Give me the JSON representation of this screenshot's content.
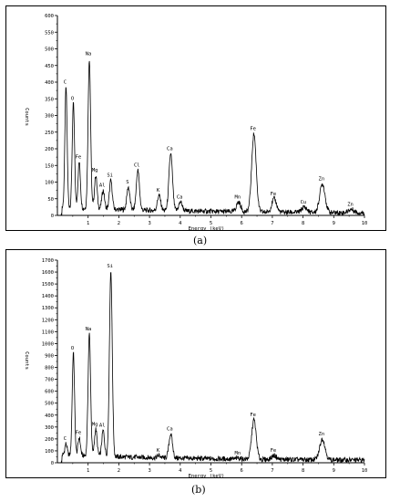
{
  "panels": [
    {
      "caption": "(a)"
    },
    {
      "caption": "(b)"
    }
  ],
  "colors": {
    "trace": "#000000",
    "background": "#ffffff"
  },
  "chart_data": [
    {
      "type": "line",
      "title": "",
      "xlabel": "Energy (keV)",
      "ylabel": "Counts",
      "xlim": [
        0,
        10
      ],
      "ylim": [
        0,
        600
      ],
      "x_ticks": [
        "1",
        "2",
        "3",
        "4",
        "5",
        "6",
        "7",
        "8",
        "9",
        "10"
      ],
      "y_ticks": [
        "0",
        "50",
        "100",
        "150",
        "200",
        "250",
        "300",
        "350",
        "400",
        "450",
        "500",
        "550",
        "600"
      ],
      "grid": false,
      "peaks": [
        {
          "label": "C",
          "energy": 0.28,
          "counts": 385
        },
        {
          "label": "O",
          "energy": 0.52,
          "counts": 335
        },
        {
          "label": "Fe",
          "energy": 0.71,
          "counts": 160
        },
        {
          "label": "Na",
          "energy": 1.04,
          "counts": 470
        },
        {
          "label": "Mg",
          "energy": 1.25,
          "counts": 120
        },
        {
          "label": "Al",
          "energy": 1.49,
          "counts": 75
        },
        {
          "label": "Si",
          "energy": 1.74,
          "counts": 105
        },
        {
          "label": "S",
          "energy": 2.31,
          "counts": 85
        },
        {
          "label": "Cl",
          "energy": 2.62,
          "counts": 135
        },
        {
          "label": "K",
          "energy": 3.31,
          "counts": 60
        },
        {
          "label": "Ca",
          "energy": 3.69,
          "counts": 185
        },
        {
          "label": "Ca",
          "energy": 4.01,
          "counts": 40
        },
        {
          "label": "Mn",
          "energy": 5.9,
          "counts": 40
        },
        {
          "label": "Fe",
          "energy": 6.4,
          "counts": 245
        },
        {
          "label": "Fe",
          "energy": 7.06,
          "counts": 50
        },
        {
          "label": "Cu",
          "energy": 8.04,
          "counts": 25
        },
        {
          "label": "Zn",
          "energy": 8.63,
          "counts": 95
        },
        {
          "label": "Zn",
          "energy": 9.57,
          "counts": 18
        }
      ]
    },
    {
      "type": "line",
      "title": "",
      "xlabel": "Energy (keV)",
      "ylabel": "Counts",
      "xlim": [
        0,
        10
      ],
      "ylim": [
        0,
        1700
      ],
      "x_ticks": [
        "1",
        "2",
        "3",
        "4",
        "5",
        "6",
        "7",
        "8",
        "9",
        "10"
      ],
      "y_ticks": [
        "0",
        "100",
        "200",
        "300",
        "400",
        "500",
        "600",
        "700",
        "800",
        "900",
        "1000",
        "1100",
        "1200",
        "1300",
        "1400",
        "1500",
        "1600",
        "1700"
      ],
      "grid": false,
      "peaks": [
        {
          "label": "C",
          "energy": 0.28,
          "counts": 160
        },
        {
          "label": "O",
          "energy": 0.52,
          "counts": 920
        },
        {
          "label": "Fe",
          "energy": 0.71,
          "counts": 210
        },
        {
          "label": "Na",
          "energy": 1.04,
          "counts": 1080
        },
        {
          "label": "Mg",
          "energy": 1.25,
          "counts": 280
        },
        {
          "label": "Al",
          "energy": 1.49,
          "counts": 270
        },
        {
          "label": "Si",
          "energy": 1.74,
          "counts": 1610
        },
        {
          "label": "K",
          "energy": 3.31,
          "counts": 60
        },
        {
          "label": "Ca",
          "energy": 3.69,
          "counts": 240
        },
        {
          "label": "Mn",
          "energy": 5.9,
          "counts": 40
        },
        {
          "label": "Fe",
          "energy": 6.4,
          "counts": 360
        },
        {
          "label": "Fe",
          "energy": 7.06,
          "counts": 60
        },
        {
          "label": "Zn",
          "energy": 8.63,
          "counts": 200
        }
      ]
    }
  ]
}
